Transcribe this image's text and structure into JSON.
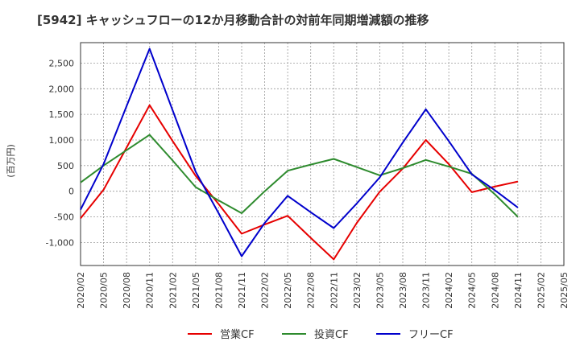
{
  "chart_data": {
    "type": "line",
    "title": "[5942]  キャッシュフローの12か月移動合計の対前年同期増減額の推移",
    "ylabel": "(百万円)",
    "xlabel": "",
    "ylim": [
      -1450,
      2900
    ],
    "yticks": [
      -1000,
      -500,
      0,
      500,
      1000,
      1500,
      2000,
      2500
    ],
    "ytick_labels": [
      "-1,000",
      "-500",
      "0",
      "500",
      "1,000",
      "1,500",
      "2,000",
      "2,500"
    ],
    "x": [
      "2020/02",
      "2020/05",
      "2020/08",
      "2020/11",
      "2021/02",
      "2021/05",
      "2021/08",
      "2021/11",
      "2022/02",
      "2022/05",
      "2022/08",
      "2022/11",
      "2023/02",
      "2023/05",
      "2023/08",
      "2023/11",
      "2024/02",
      "2024/05",
      "2024/08",
      "2024/11",
      "2025/02",
      "2025/05"
    ],
    "grid": true,
    "legend": "bottom",
    "series": [
      {
        "name": "営業CF",
        "color": "#e60000",
        "values": [
          -530,
          30,
          850,
          1680,
          980,
          300,
          -250,
          -830,
          -650,
          -480,
          -910,
          -1330,
          -620,
          -10,
          440,
          1000,
          530,
          -20,
          90,
          190,
          null,
          null
        ]
      },
      {
        "name": "投資CF",
        "color": "#2e8b2e",
        "values": [
          170,
          500,
          800,
          1100,
          600,
          80,
          -180,
          -430,
          0,
          400,
          520,
          630,
          470,
          310,
          450,
          610,
          480,
          340,
          -60,
          -500,
          null,
          null
        ]
      },
      {
        "name": "フリーCF",
        "color": "#0000cc",
        "values": [
          -360,
          530,
          1660,
          2780,
          1580,
          380,
          -430,
          -1270,
          -620,
          -90,
          -410,
          -720,
          -240,
          270,
          950,
          1600,
          980,
          330,
          20,
          -320,
          null,
          null
        ]
      }
    ]
  }
}
